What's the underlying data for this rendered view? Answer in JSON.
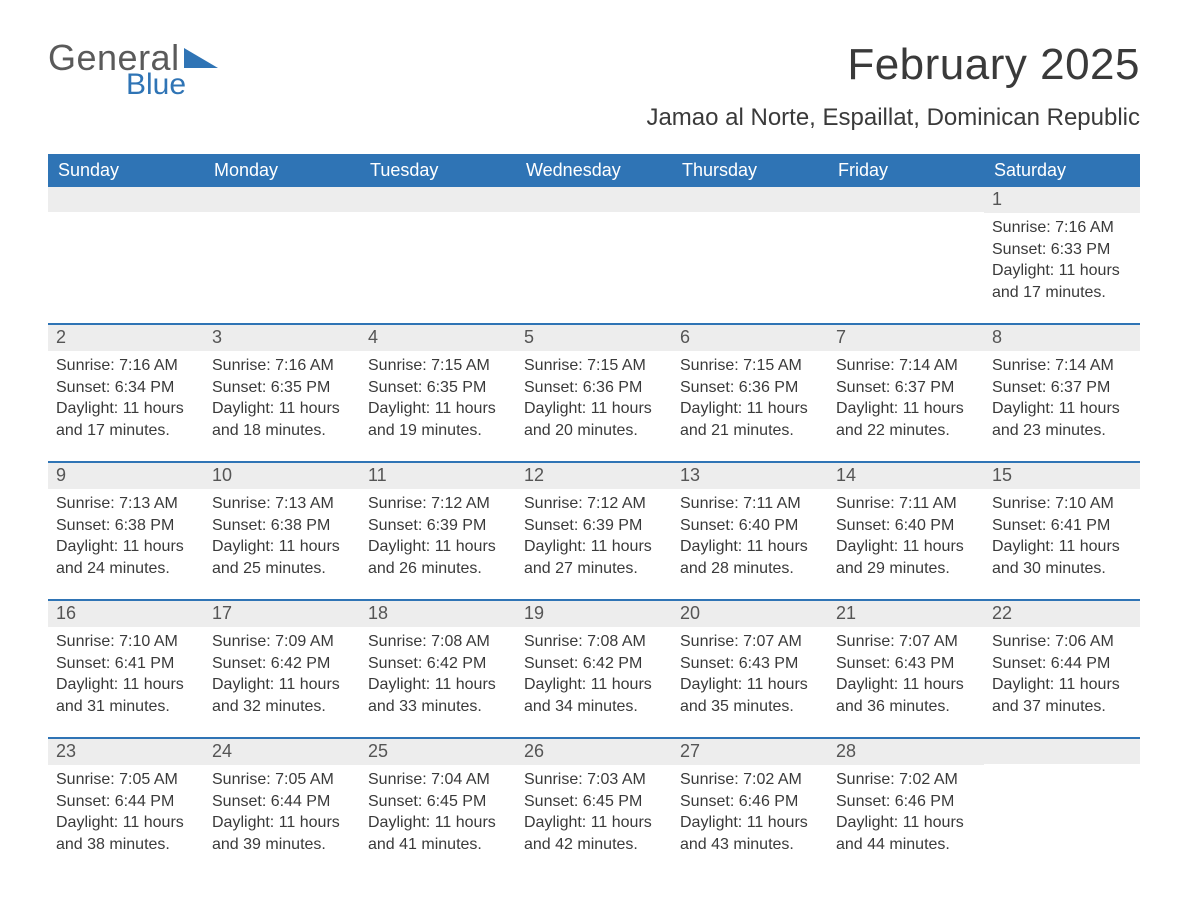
{
  "logo": {
    "general": "General",
    "blue": "Blue"
  },
  "title": "February 2025",
  "location": "Jamao al Norte, Espaillat, Dominican Republic",
  "day_headers": [
    "Sunday",
    "Monday",
    "Tuesday",
    "Wednesday",
    "Thursday",
    "Friday",
    "Saturday"
  ],
  "colors": {
    "header_bg": "#2f74b5",
    "header_text": "#ffffff",
    "daynum_bg": "#ededed",
    "text": "#3a3a3a",
    "logo_blue": "#2f74b5",
    "logo_grey": "#5a5a5a"
  },
  "weeks": [
    [
      {
        "num": "",
        "lines": []
      },
      {
        "num": "",
        "lines": []
      },
      {
        "num": "",
        "lines": []
      },
      {
        "num": "",
        "lines": []
      },
      {
        "num": "",
        "lines": []
      },
      {
        "num": "",
        "lines": []
      },
      {
        "num": "1",
        "lines": [
          "Sunrise: 7:16 AM",
          "Sunset: 6:33 PM",
          "Daylight: 11 hours and 17 minutes."
        ]
      }
    ],
    [
      {
        "num": "2",
        "lines": [
          "Sunrise: 7:16 AM",
          "Sunset: 6:34 PM",
          "Daylight: 11 hours and 17 minutes."
        ]
      },
      {
        "num": "3",
        "lines": [
          "Sunrise: 7:16 AM",
          "Sunset: 6:35 PM",
          "Daylight: 11 hours and 18 minutes."
        ]
      },
      {
        "num": "4",
        "lines": [
          "Sunrise: 7:15 AM",
          "Sunset: 6:35 PM",
          "Daylight: 11 hours and 19 minutes."
        ]
      },
      {
        "num": "5",
        "lines": [
          "Sunrise: 7:15 AM",
          "Sunset: 6:36 PM",
          "Daylight: 11 hours and 20 minutes."
        ]
      },
      {
        "num": "6",
        "lines": [
          "Sunrise: 7:15 AM",
          "Sunset: 6:36 PM",
          "Daylight: 11 hours and 21 minutes."
        ]
      },
      {
        "num": "7",
        "lines": [
          "Sunrise: 7:14 AM",
          "Sunset: 6:37 PM",
          "Daylight: 11 hours and 22 minutes."
        ]
      },
      {
        "num": "8",
        "lines": [
          "Sunrise: 7:14 AM",
          "Sunset: 6:37 PM",
          "Daylight: 11 hours and 23 minutes."
        ]
      }
    ],
    [
      {
        "num": "9",
        "lines": [
          "Sunrise: 7:13 AM",
          "Sunset: 6:38 PM",
          "Daylight: 11 hours and 24 minutes."
        ]
      },
      {
        "num": "10",
        "lines": [
          "Sunrise: 7:13 AM",
          "Sunset: 6:38 PM",
          "Daylight: 11 hours and 25 minutes."
        ]
      },
      {
        "num": "11",
        "lines": [
          "Sunrise: 7:12 AM",
          "Sunset: 6:39 PM",
          "Daylight: 11 hours and 26 minutes."
        ]
      },
      {
        "num": "12",
        "lines": [
          "Sunrise: 7:12 AM",
          "Sunset: 6:39 PM",
          "Daylight: 11 hours and 27 minutes."
        ]
      },
      {
        "num": "13",
        "lines": [
          "Sunrise: 7:11 AM",
          "Sunset: 6:40 PM",
          "Daylight: 11 hours and 28 minutes."
        ]
      },
      {
        "num": "14",
        "lines": [
          "Sunrise: 7:11 AM",
          "Sunset: 6:40 PM",
          "Daylight: 11 hours and 29 minutes."
        ]
      },
      {
        "num": "15",
        "lines": [
          "Sunrise: 7:10 AM",
          "Sunset: 6:41 PM",
          "Daylight: 11 hours and 30 minutes."
        ]
      }
    ],
    [
      {
        "num": "16",
        "lines": [
          "Sunrise: 7:10 AM",
          "Sunset: 6:41 PM",
          "Daylight: 11 hours and 31 minutes."
        ]
      },
      {
        "num": "17",
        "lines": [
          "Sunrise: 7:09 AM",
          "Sunset: 6:42 PM",
          "Daylight: 11 hours and 32 minutes."
        ]
      },
      {
        "num": "18",
        "lines": [
          "Sunrise: 7:08 AM",
          "Sunset: 6:42 PM",
          "Daylight: 11 hours and 33 minutes."
        ]
      },
      {
        "num": "19",
        "lines": [
          "Sunrise: 7:08 AM",
          "Sunset: 6:42 PM",
          "Daylight: 11 hours and 34 minutes."
        ]
      },
      {
        "num": "20",
        "lines": [
          "Sunrise: 7:07 AM",
          "Sunset: 6:43 PM",
          "Daylight: 11 hours and 35 minutes."
        ]
      },
      {
        "num": "21",
        "lines": [
          "Sunrise: 7:07 AM",
          "Sunset: 6:43 PM",
          "Daylight: 11 hours and 36 minutes."
        ]
      },
      {
        "num": "22",
        "lines": [
          "Sunrise: 7:06 AM",
          "Sunset: 6:44 PM",
          "Daylight: 11 hours and 37 minutes."
        ]
      }
    ],
    [
      {
        "num": "23",
        "lines": [
          "Sunrise: 7:05 AM",
          "Sunset: 6:44 PM",
          "Daylight: 11 hours and 38 minutes."
        ]
      },
      {
        "num": "24",
        "lines": [
          "Sunrise: 7:05 AM",
          "Sunset: 6:44 PM",
          "Daylight: 11 hours and 39 minutes."
        ]
      },
      {
        "num": "25",
        "lines": [
          "Sunrise: 7:04 AM",
          "Sunset: 6:45 PM",
          "Daylight: 11 hours and 41 minutes."
        ]
      },
      {
        "num": "26",
        "lines": [
          "Sunrise: 7:03 AM",
          "Sunset: 6:45 PM",
          "Daylight: 11 hours and 42 minutes."
        ]
      },
      {
        "num": "27",
        "lines": [
          "Sunrise: 7:02 AM",
          "Sunset: 6:46 PM",
          "Daylight: 11 hours and 43 minutes."
        ]
      },
      {
        "num": "28",
        "lines": [
          "Sunrise: 7:02 AM",
          "Sunset: 6:46 PM",
          "Daylight: 11 hours and 44 minutes."
        ]
      },
      {
        "num": "",
        "lines": []
      }
    ]
  ]
}
